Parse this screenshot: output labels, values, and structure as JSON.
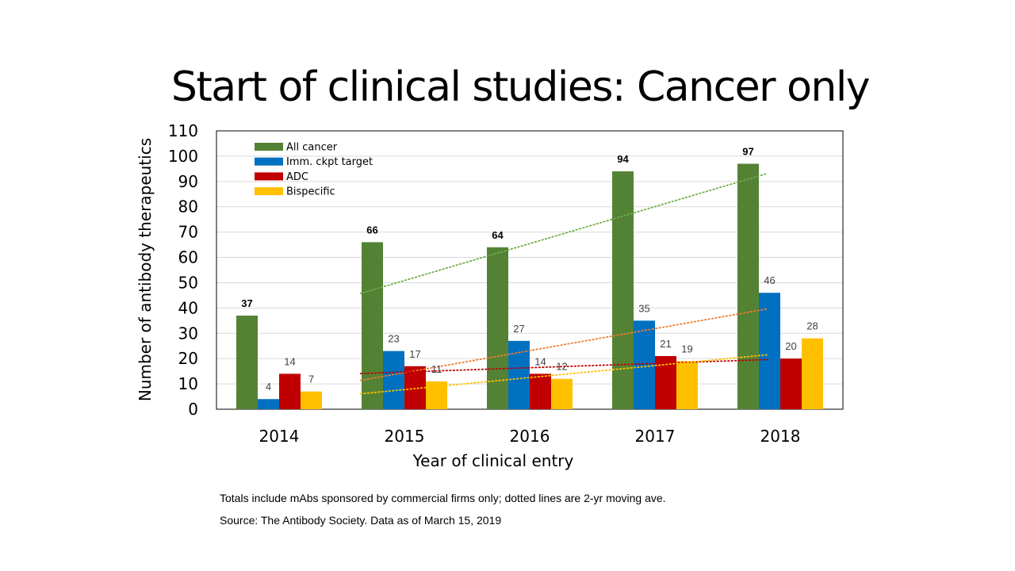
{
  "title": "Start of clinical studies: Cancer only",
  "footnote": "Totals include mAbs sponsored by commercial firms only; dotted lines are 2-yr moving ave.",
  "source": "Source: The Antibody Society. Data as of March 15, 2019",
  "chart_data": {
    "type": "bar",
    "xlabel": "Year of clinical entry",
    "ylabel": "Number of antibody therapeutics",
    "ylim": [
      0,
      110
    ],
    "yticks": [
      0,
      10,
      20,
      30,
      40,
      50,
      60,
      70,
      80,
      90,
      100,
      110
    ],
    "categories": [
      "2014",
      "2015",
      "2016",
      "2017",
      "2018"
    ],
    "legend_position": "top-left",
    "grid": true,
    "series": [
      {
        "name": "All cancer",
        "values": [
          37,
          66,
          64,
          94,
          97
        ],
        "color": "#548235",
        "label_bold": true
      },
      {
        "name": "Imm. ckpt target",
        "values": [
          4,
          23,
          27,
          35,
          46
        ],
        "color": "#0070C0",
        "label_bold": false
      },
      {
        "name": "ADC",
        "values": [
          14,
          17,
          14,
          21,
          20
        ],
        "color": "#C00000",
        "label_bold": false
      },
      {
        "name": "Bispecific",
        "values": [
          7,
          11,
          12,
          19,
          28
        ],
        "color": "#FFC000",
        "label_bold": false
      }
    ],
    "trendlines": [
      {
        "series": "All cancer",
        "style": "dotted",
        "color": "#70AD47",
        "values": [
          null,
          51.5,
          65,
          79,
          95.5
        ]
      },
      {
        "series": "Imm. ckpt target",
        "style": "dotted",
        "color": "#ED7D31",
        "values": [
          null,
          13.5,
          25,
          31,
          40.5
        ]
      },
      {
        "series": "ADC",
        "style": "dotted",
        "color": "#C00000",
        "values": [
          null,
          15.5,
          15.5,
          17.5,
          20.5
        ]
      },
      {
        "series": "Bispecific",
        "style": "dotted",
        "color": "#FFC000",
        "values": [
          null,
          9,
          11.5,
          15.5,
          23.5
        ]
      }
    ]
  }
}
